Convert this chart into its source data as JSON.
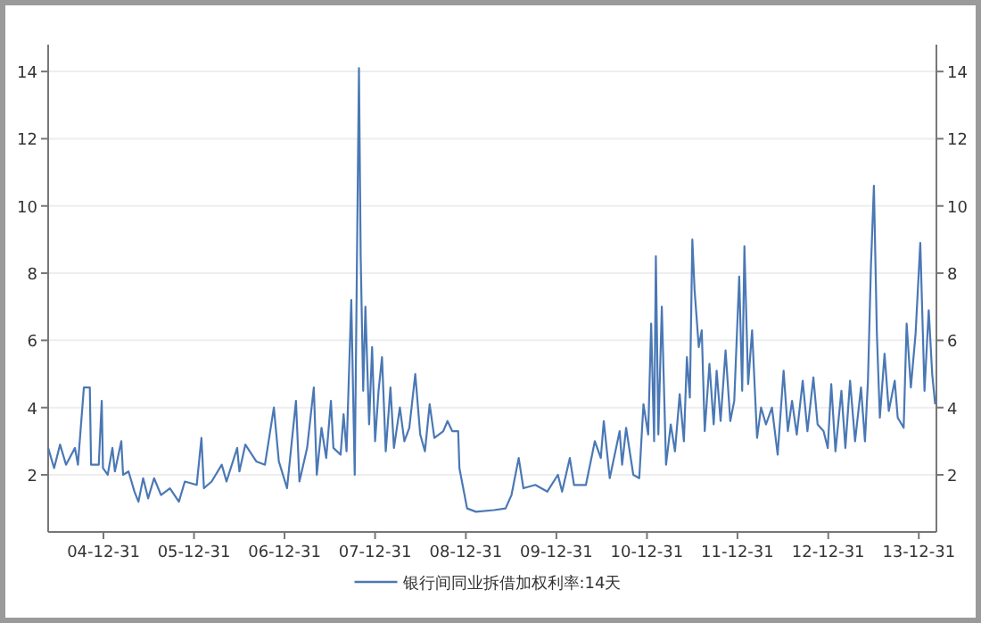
{
  "chart_data": {
    "type": "line",
    "grid": "y",
    "legend": "bottom",
    "xlim": [
      "2004-05-22",
      "2014-03-12"
    ],
    "xticks": [
      {
        "value": "2004-12-31",
        "label": "04-12-31"
      },
      {
        "value": "2005-12-31",
        "label": "05-12-31"
      },
      {
        "value": "2006-12-31",
        "label": "06-12-31"
      },
      {
        "value": "2007-12-31",
        "label": "07-12-31"
      },
      {
        "value": "2008-12-31",
        "label": "08-12-31"
      },
      {
        "value": "2009-12-31",
        "label": "09-12-31"
      },
      {
        "value": "2010-12-31",
        "label": "10-12-31"
      },
      {
        "value": "2011-12-31",
        "label": "11-12-31"
      },
      {
        "value": "2012-12-31",
        "label": "12-12-31"
      },
      {
        "value": "2013-12-31",
        "label": "13-12-31"
      }
    ],
    "ylim": [
      0.3,
      14.8
    ],
    "yticks": [
      2,
      4,
      6,
      8,
      10,
      12,
      14
    ],
    "y2lim": [
      0.3,
      14.8
    ],
    "y2ticks": [
      2,
      4,
      6,
      8,
      10,
      12,
      14
    ],
    "x": [
      "2004-05-22",
      "2004-06-15",
      "2004-07-09",
      "2004-08-02",
      "2004-09-07",
      "2004-09-19",
      "2004-10-13",
      "2004-11-06",
      "2004-11-11",
      "2004-12-12",
      "2004-12-24",
      "2004-12-29",
      "2005-01-17",
      "2005-02-05",
      "2005-02-15",
      "2005-03-13",
      "2005-03-20",
      "2005-04-11",
      "2005-05-05",
      "2005-05-21",
      "2005-06-09",
      "2005-06-29",
      "2005-07-23",
      "2005-08-20",
      "2005-09-25",
      "2005-10-31",
      "2005-11-24",
      "2006-01-11",
      "2006-01-30",
      "2006-02-09",
      "2006-03-12",
      "2006-04-22",
      "2006-05-11",
      "2006-06-23",
      "2006-07-02",
      "2006-07-26",
      "2006-09-08",
      "2006-10-13",
      "2006-11-18",
      "2006-12-08",
      "2007-01-10",
      "2007-02-15",
      "2007-03-01",
      "2007-04-01",
      "2007-04-28",
      "2007-05-10",
      "2007-05-29",
      "2007-06-17",
      "2007-07-06",
      "2007-07-16",
      "2007-08-14",
      "2007-08-26",
      "2007-09-07",
      "2007-09-26",
      "2007-10-10",
      "2007-10-27",
      "2007-11-03",
      "2007-11-13",
      "2007-11-22",
      "2007-12-07",
      "2007-12-19",
      "2007-12-31",
      "2008-01-14",
      "2008-01-28",
      "2008-02-12",
      "2008-03-02",
      "2008-03-16",
      "2008-04-09",
      "2008-04-27",
      "2008-05-17",
      "2008-06-10",
      "2008-06-30",
      "2008-07-19",
      "2008-08-07",
      "2008-08-26",
      "2008-10-01",
      "2008-10-18",
      "2008-11-06",
      "2008-11-30",
      "2008-12-05",
      "2009-01-05",
      "2009-02-10",
      "2009-04-23",
      "2009-06-09",
      "2009-07-03",
      "2009-08-01",
      "2009-08-20",
      "2009-10-07",
      "2009-11-24",
      "2010-01-06",
      "2010-01-23",
      "2010-02-23",
      "2010-03-12",
      "2010-04-29",
      "2010-06-04",
      "2010-06-28",
      "2010-07-10",
      "2010-08-03",
      "2010-09-12",
      "2010-09-22",
      "2010-10-08",
      "2010-11-06",
      "2010-11-30",
      "2010-12-17",
      "2011-01-05",
      "2011-01-17",
      "2011-01-29",
      "2011-02-05",
      "2011-02-15",
      "2011-03-01",
      "2011-03-18",
      "2011-04-06",
      "2011-04-23",
      "2011-05-12",
      "2011-05-29",
      "2011-06-10",
      "2011-06-22",
      "2011-07-02",
      "2011-07-11",
      "2011-07-28",
      "2011-08-09",
      "2011-08-21",
      "2011-09-09",
      "2011-09-26",
      "2011-10-08",
      "2011-10-24",
      "2011-11-13",
      "2011-12-02",
      "2011-12-18",
      "2012-01-07",
      "2012-01-19",
      "2012-01-28",
      "2012-02-12",
      "2012-02-28",
      "2012-03-19",
      "2012-04-04",
      "2012-04-24",
      "2012-05-18",
      "2012-06-10",
      "2012-07-04",
      "2012-07-21",
      "2012-08-07",
      "2012-08-26",
      "2012-09-19",
      "2012-10-08",
      "2012-11-01",
      "2012-11-18",
      "2012-12-12",
      "2012-12-29",
      "2013-01-12",
      "2013-01-29",
      "2013-02-22",
      "2013-03-10",
      "2013-03-29",
      "2013-04-18",
      "2013-05-12",
      "2013-05-28",
      "2013-06-09",
      "2013-06-21",
      "2013-07-03",
      "2013-07-15",
      "2013-07-27",
      "2013-08-15",
      "2013-09-01",
      "2013-09-25",
      "2013-10-07",
      "2013-10-31",
      "2013-11-12",
      "2013-11-29",
      "2013-12-18",
      "2014-01-06",
      "2014-01-23",
      "2014-02-09",
      "2014-02-23",
      "2014-03-07"
    ],
    "series": [
      {
        "name": "银行间同业拆借加权利率:14天",
        "color": "#4a78b5",
        "values": [
          2.8,
          2.2,
          2.9,
          2.3,
          2.8,
          2.3,
          4.6,
          4.6,
          2.3,
          2.3,
          4.2,
          2.2,
          2.0,
          2.8,
          2.1,
          3.0,
          2.0,
          2.1,
          1.5,
          1.2,
          1.9,
          1.3,
          1.9,
          1.4,
          1.6,
          1.2,
          1.8,
          1.7,
          3.1,
          1.6,
          1.8,
          2.3,
          1.8,
          2.8,
          2.1,
          2.9,
          2.4,
          2.3,
          4.0,
          2.4,
          1.6,
          4.2,
          1.8,
          2.8,
          4.6,
          2.0,
          3.4,
          2.5,
          4.2,
          2.8,
          2.6,
          3.8,
          2.7,
          7.2,
          2.0,
          14.1,
          8.5,
          4.5,
          7.0,
          3.5,
          5.8,
          3.0,
          4.5,
          5.5,
          2.7,
          4.6,
          2.8,
          4.0,
          3.0,
          3.4,
          5.0,
          3.2,
          2.7,
          4.1,
          3.1,
          3.3,
          3.6,
          3.3,
          3.3,
          2.2,
          1.0,
          0.9,
          0.95,
          1.0,
          1.4,
          2.5,
          1.6,
          1.7,
          1.5,
          2.0,
          1.5,
          2.5,
          1.7,
          1.7,
          3.0,
          2.5,
          3.6,
          1.9,
          3.3,
          2.3,
          3.4,
          2.0,
          1.9,
          4.1,
          3.2,
          6.5,
          3.0,
          8.5,
          3.2,
          7.0,
          2.3,
          3.5,
          2.7,
          4.4,
          3.0,
          5.5,
          4.3,
          9.0,
          7.5,
          5.8,
          6.3,
          3.3,
          5.3,
          3.5,
          5.1,
          3.6,
          5.7,
          3.6,
          4.2,
          7.9,
          4.5,
          8.8,
          4.7,
          6.3,
          3.1,
          4.0,
          3.5,
          4.0,
          2.6,
          5.1,
          3.3,
          4.2,
          3.2,
          4.8,
          3.3,
          4.9,
          3.5,
          3.3,
          2.8,
          4.7,
          2.7,
          4.5,
          2.8,
          4.8,
          3.0,
          4.6,
          3.0,
          4.8,
          8.2,
          10.6,
          6.2,
          3.7,
          5.6,
          3.9,
          4.8,
          3.7,
          3.4,
          6.5,
          4.6,
          6.2,
          8.9,
          4.5,
          6.9,
          5.0,
          4.1
        ]
      }
    ]
  }
}
